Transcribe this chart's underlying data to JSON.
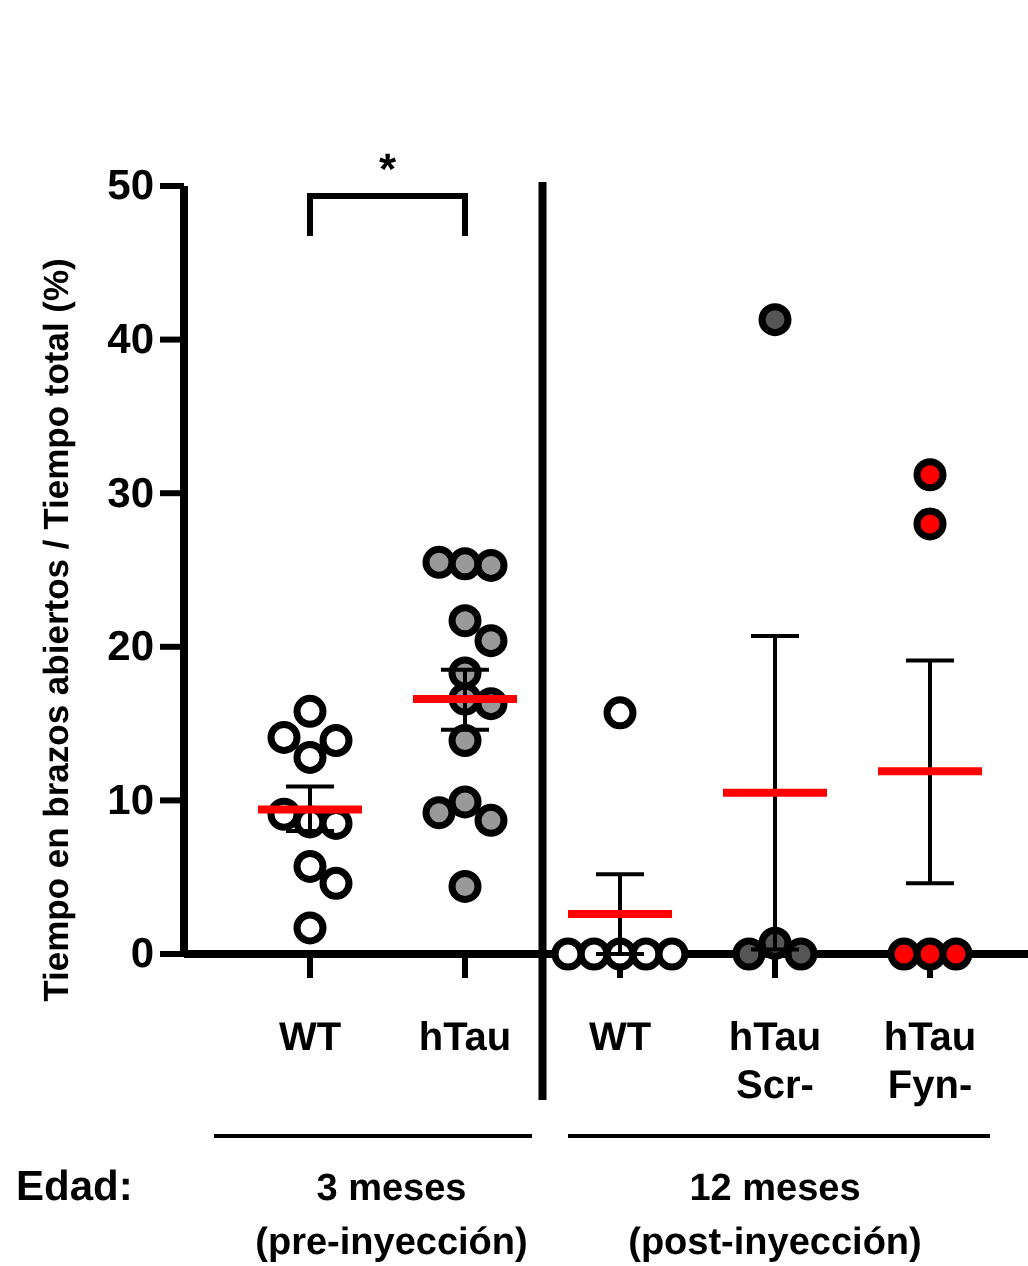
{
  "chart_data": {
    "type": "scatter",
    "ylabel": "Tiempo en brazos abiertos / Tiempo total (%)",
    "categories": [
      "WT",
      "hTau",
      "WT",
      "hTau Scr-",
      "hTau Fyn-"
    ],
    "ylim": [
      0,
      50
    ],
    "yticks": [
      0,
      10,
      20,
      30,
      40,
      50
    ],
    "grid": false,
    "marker": "circle",
    "series": [
      {
        "colors": [
          "#ffffff",
          "#999999",
          "#ffffff",
          "#555555",
          "#ff0000"
        ],
        "values": [
          15.8,
          25.4,
          0,
          41.3,
          31.2
        ]
      },
      {
        "colors": [
          "#ffffff",
          "#999999",
          "#ffffff",
          "#555555",
          "#ff0000"
        ],
        "values": [
          12.8,
          25.3,
          0,
          0.7,
          28.0
        ]
      },
      {
        "colors": [
          "#ffffff",
          "#999999",
          "#ffffff",
          "#555555",
          "#ff0000"
        ],
        "values": [
          13.9,
          25.5,
          0,
          0,
          0
        ]
      },
      {
        "colors": [
          "#ffffff",
          "#999999",
          "#ffffff",
          "#555555",
          "#ff0000"
        ],
        "values": [
          14.1,
          21.7,
          0,
          0,
          0
        ]
      },
      {
        "colors": [
          "#ffffff",
          "#999999",
          "#ffffff",
          null,
          "#ff0000"
        ],
        "values": [
          8.6,
          20.4,
          0,
          null,
          0
        ]
      },
      {
        "colors": [
          "#ffffff",
          "#999999",
          "#ffffff",
          null,
          null
        ],
        "values": [
          8.5,
          18.3,
          15.7,
          null,
          null
        ]
      },
      {
        "colors": [
          "#ffffff",
          "#999999",
          null,
          null,
          null
        ],
        "values": [
          9.1,
          16.6,
          null,
          null,
          null
        ]
      },
      {
        "colors": [
          "#ffffff",
          "#999999",
          null,
          null,
          null
        ],
        "values": [
          1.7,
          16.3,
          null,
          null,
          null
        ]
      },
      {
        "colors": [
          "#ffffff",
          "#999999",
          null,
          null,
          null
        ],
        "values": [
          5.7,
          13.9,
          null,
          null,
          null
        ]
      },
      {
        "colors": [
          "#ffffff",
          "#999999",
          null,
          null,
          null
        ],
        "values": [
          4.6,
          9.9,
          null,
          null,
          null
        ]
      },
      {
        "colors": [
          null,
          "#999999",
          null,
          null,
          null
        ],
        "values": [
          null,
          8.7,
          null,
          null,
          null
        ]
      },
      {
        "colors": [
          null,
          "#999999",
          null,
          null,
          null
        ],
        "values": [
          null,
          9.2,
          null,
          null,
          null
        ]
      },
      {
        "colors": [
          null,
          "#999999",
          null,
          null,
          null
        ],
        "values": [
          null,
          4.4,
          null,
          null,
          null
        ]
      },
      {
        "type": "box",
        "color": "#ff0000",
        "boxes": [
          {
            "low": 8.0,
            "q1": 9.4,
            "median": 9.4,
            "q3": 9.4,
            "high": 10.9
          },
          {
            "low": 14.6,
            "q1": 16.6,
            "median": 16.6,
            "q3": 16.6,
            "high": 18.5
          },
          {
            "low": 0,
            "q1": 2.6,
            "median": 2.6,
            "q3": 2.6,
            "high": 5.2
          },
          {
            "low": 0.3,
            "q1": 10.5,
            "median": 10.5,
            "q3": 10.5,
            "high": 20.7
          },
          {
            "low": 4.6,
            "q1": 11.9,
            "median": 11.9,
            "q3": 11.9,
            "high": 19.1
          }
        ]
      }
    ],
    "annotations": [
      "*",
      "Edad:",
      "3 meses\n(pre-inyección)",
      "12 meses\n(post-inyección)"
    ]
  }
}
